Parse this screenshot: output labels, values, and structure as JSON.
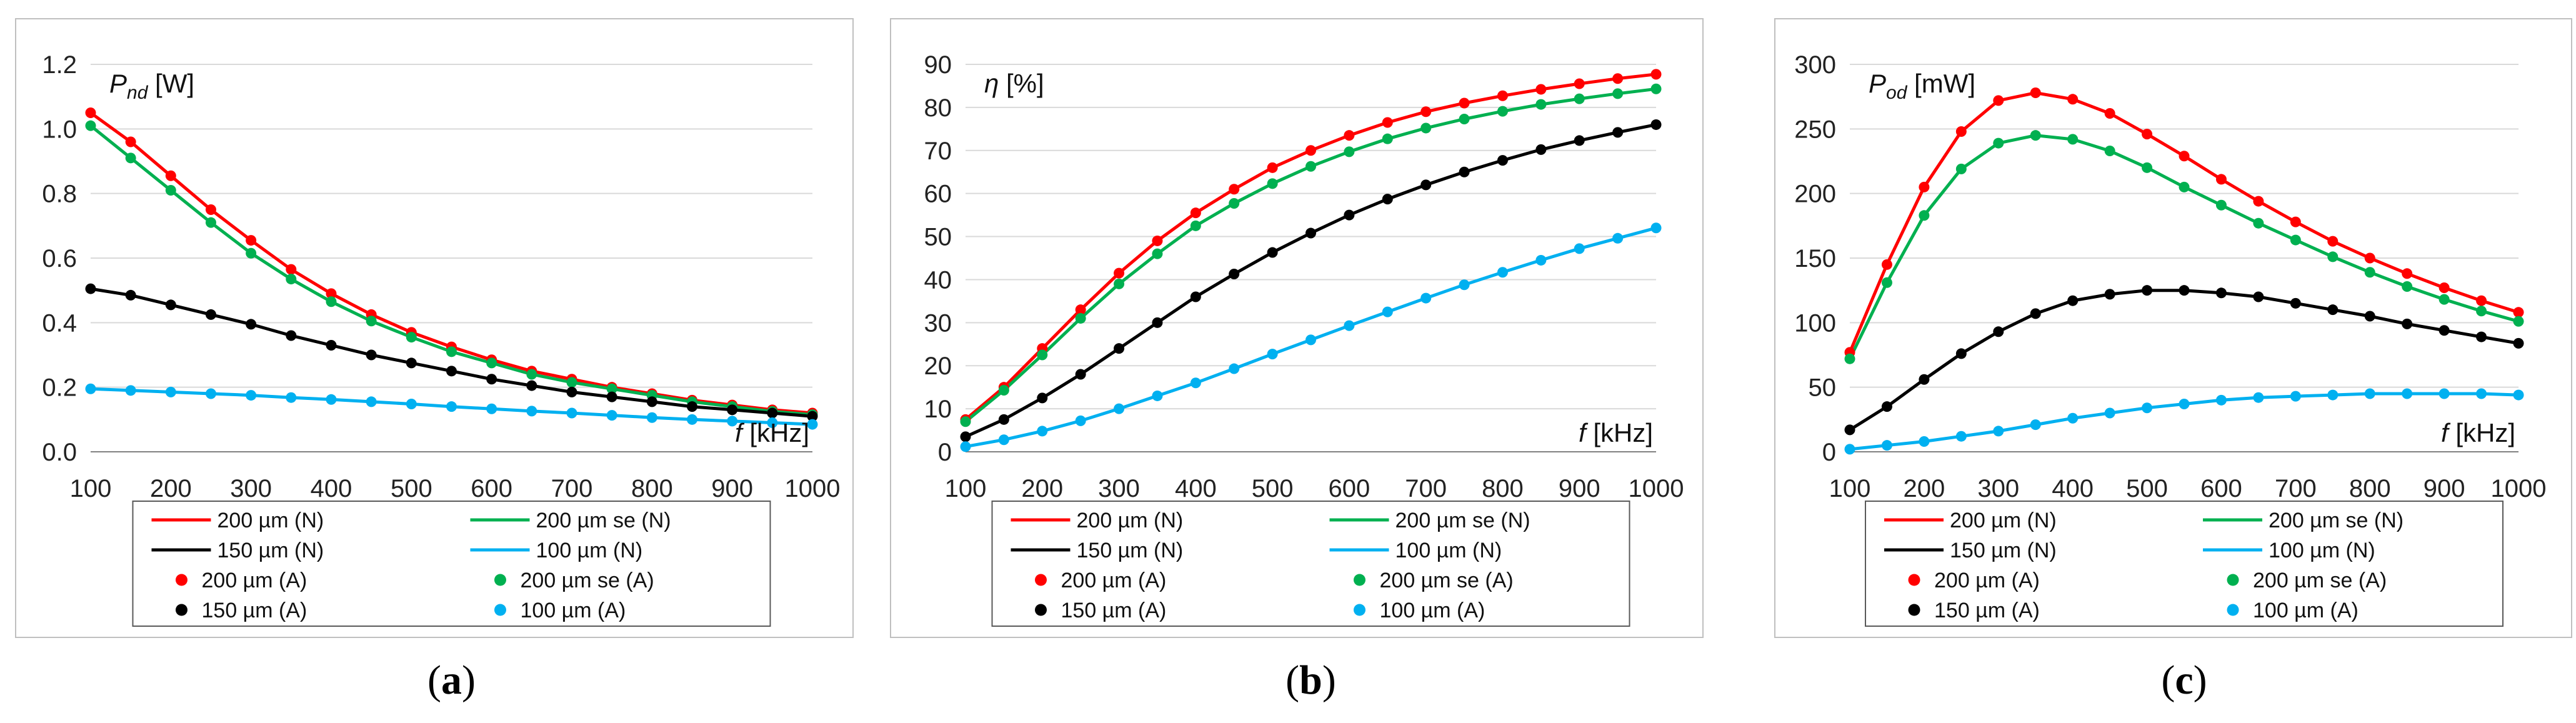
{
  "chart_data": [
    {
      "type": "line",
      "panel": "a",
      "caption": {
        "open": "(",
        "letter": "a",
        "close": ")"
      },
      "ylabel": {
        "sym": "P",
        "sub": "nd",
        "unit": " [W]"
      },
      "xlabel": {
        "sym": "f",
        "unit": " [kHz]"
      },
      "x": [
        100,
        150,
        200,
        250,
        300,
        350,
        400,
        450,
        500,
        550,
        600,
        650,
        700,
        750,
        800,
        850,
        900,
        950,
        1000
      ],
      "xticks": [
        "100",
        "200",
        "300",
        "400",
        "500",
        "600",
        "700",
        "800",
        "900",
        "1000"
      ],
      "xlim": [
        100,
        1000
      ],
      "ylim": [
        0,
        1.2
      ],
      "yticks": [
        "0.0",
        "0.2",
        "0.4",
        "0.6",
        "0.8",
        "1.0",
        "1.2"
      ],
      "series": [
        {
          "key": "200",
          "color": "#ff0000",
          "values": [
            1.05,
            0.96,
            0.855,
            0.75,
            0.655,
            0.565,
            0.49,
            0.425,
            0.37,
            0.325,
            0.285,
            0.25,
            0.225,
            0.2,
            0.18,
            0.16,
            0.145,
            0.13,
            0.12
          ]
        },
        {
          "key": "200se",
          "color": "#00b050",
          "values": [
            1.01,
            0.91,
            0.81,
            0.71,
            0.615,
            0.535,
            0.465,
            0.405,
            0.355,
            0.31,
            0.275,
            0.24,
            0.215,
            0.195,
            0.175,
            0.155,
            0.14,
            0.125,
            0.115
          ]
        },
        {
          "key": "150",
          "color": "#000000",
          "values": [
            0.505,
            0.485,
            0.455,
            0.425,
            0.395,
            0.36,
            0.33,
            0.3,
            0.275,
            0.25,
            0.225,
            0.205,
            0.185,
            0.17,
            0.155,
            0.14,
            0.13,
            0.12,
            0.11
          ]
        },
        {
          "key": "100",
          "color": "#00b0f0",
          "values": [
            0.195,
            0.19,
            0.185,
            0.18,
            0.175,
            0.168,
            0.162,
            0.155,
            0.148,
            0.14,
            0.133,
            0.126,
            0.12,
            0.113,
            0.106,
            0.1,
            0.095,
            0.09,
            0.085
          ]
        }
      ]
    },
    {
      "type": "line",
      "panel": "b",
      "caption": {
        "open": "(",
        "letter": "b",
        "close": ")"
      },
      "ylabel": {
        "sym": "η",
        "sub": "",
        "unit": " [%]"
      },
      "xlabel": {
        "sym": "f",
        "unit": " [kHz]"
      },
      "x": [
        100,
        150,
        200,
        250,
        300,
        350,
        400,
        450,
        500,
        550,
        600,
        650,
        700,
        750,
        800,
        850,
        900,
        950,
        1000
      ],
      "xticks": [
        "100",
        "200",
        "300",
        "400",
        "500",
        "600",
        "700",
        "800",
        "900",
        "1000"
      ],
      "xlim": [
        100,
        1000
      ],
      "ylim": [
        0,
        90
      ],
      "yticks": [
        "0",
        "10",
        "20",
        "30",
        "40",
        "50",
        "60",
        "70",
        "80",
        "90"
      ],
      "series": [
        {
          "key": "200",
          "color": "#ff0000",
          "values": [
            7.5,
            15,
            24,
            33,
            41.5,
            49,
            55.5,
            61,
            66,
            70,
            73.5,
            76.5,
            79,
            81,
            82.7,
            84.2,
            85.5,
            86.7,
            87.7
          ]
        },
        {
          "key": "200se",
          "color": "#00b050",
          "values": [
            7,
            14.3,
            22.5,
            31,
            39,
            46,
            52.5,
            57.7,
            62.3,
            66.3,
            69.7,
            72.7,
            75.2,
            77.3,
            79.1,
            80.7,
            82,
            83.2,
            84.3
          ]
        },
        {
          "key": "150",
          "color": "#000000",
          "values": [
            3.5,
            7.5,
            12.5,
            18,
            24,
            30,
            36,
            41.3,
            46.3,
            50.8,
            55,
            58.7,
            62,
            65,
            67.7,
            70.2,
            72.3,
            74.2,
            76
          ]
        },
        {
          "key": "100",
          "color": "#00b0f0",
          "values": [
            1.2,
            2.8,
            4.8,
            7.2,
            10,
            13,
            16,
            19.3,
            22.7,
            26,
            29.3,
            32.5,
            35.7,
            38.8,
            41.7,
            44.5,
            47.2,
            49.6,
            52
          ]
        }
      ]
    },
    {
      "type": "line",
      "panel": "c",
      "caption": {
        "open": "(",
        "letter": "c",
        "close": ")"
      },
      "ylabel": {
        "sym": "P",
        "sub": "od",
        "unit": " [mW]"
      },
      "xlabel": {
        "sym": "f",
        "unit": " [kHz]"
      },
      "x": [
        100,
        150,
        200,
        250,
        300,
        350,
        400,
        450,
        500,
        550,
        600,
        650,
        700,
        750,
        800,
        850,
        900,
        950,
        1000
      ],
      "xticks": [
        "100",
        "200",
        "300",
        "400",
        "500",
        "600",
        "700",
        "800",
        "900",
        "1000"
      ],
      "xlim": [
        100,
        1000
      ],
      "ylim": [
        0,
        300
      ],
      "yticks": [
        "0",
        "50",
        "100",
        "150",
        "200",
        "250",
        "300"
      ],
      "series": [
        {
          "key": "200",
          "color": "#ff0000",
          "values": [
            77,
            145,
            205,
            248,
            272,
            278,
            273,
            262,
            246,
            229,
            211,
            194,
            178,
            163,
            150,
            138,
            127,
            117,
            108
          ]
        },
        {
          "key": "200se",
          "color": "#00b050",
          "values": [
            72,
            131,
            183,
            219,
            239,
            245,
            242,
            233,
            220,
            205,
            191,
            177,
            164,
            151,
            139,
            128,
            118,
            109,
            101
          ]
        },
        {
          "key": "150",
          "color": "#000000",
          "values": [
            17,
            35,
            56,
            76,
            93,
            107,
            117,
            122,
            125,
            125,
            123,
            120,
            115,
            110,
            105,
            99,
            94,
            89,
            84
          ]
        },
        {
          "key": "100",
          "color": "#00b0f0",
          "values": [
            2,
            5,
            8,
            12,
            16,
            21,
            26,
            30,
            34,
            37,
            40,
            42,
            43,
            44,
            45,
            45,
            45,
            45,
            44
          ]
        }
      ]
    }
  ],
  "legend": {
    "n_entries": [
      {
        "key": "200",
        "text": "200 µm (N)"
      },
      {
        "key": "200se",
        "text": "200 µm se (N)"
      },
      {
        "key": "150",
        "text": "150 µm (N)"
      },
      {
        "key": "100",
        "text": "100 µm (N)"
      }
    ],
    "a_entries": [
      {
        "key": "200",
        "text": "200 µm (A)"
      },
      {
        "key": "200se",
        "text": "200 µm se (A)"
      },
      {
        "key": "150",
        "text": "150 µm (A)"
      },
      {
        "key": "100",
        "text": "100 µm (A)"
      }
    ]
  },
  "colors": {
    "200": "#ff0000",
    "200se": "#00b050",
    "150": "#000000",
    "100": "#00b0f0",
    "grid": "#d9d9d9",
    "frame": "#bfbfbf"
  }
}
